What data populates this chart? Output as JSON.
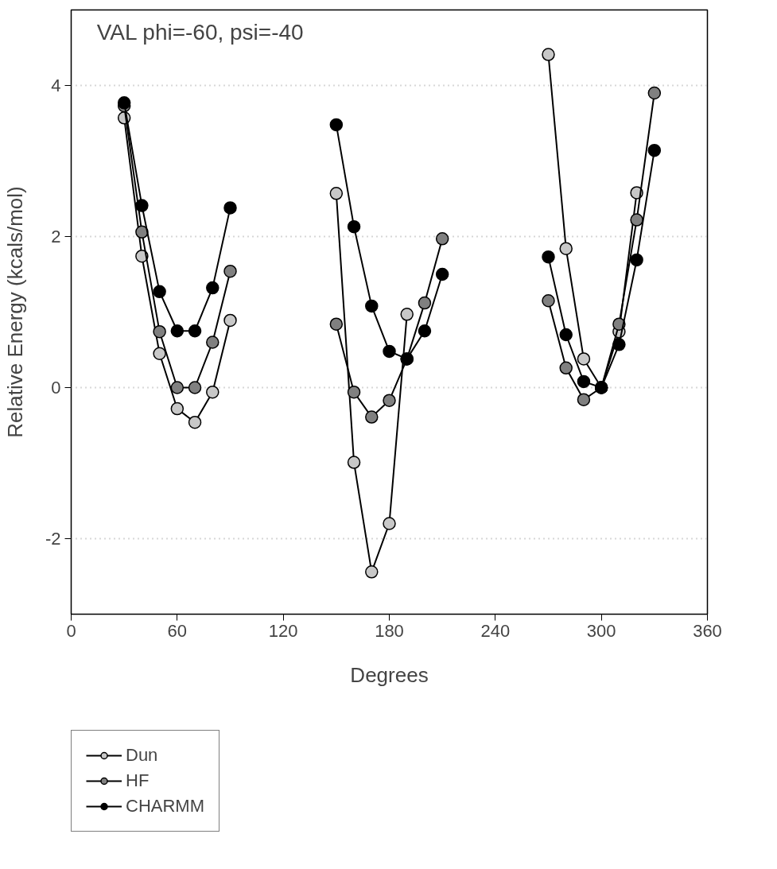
{
  "chart_data": {
    "type": "line",
    "title": "VAL phi=-60, psi=-40",
    "xlabel": "Degrees",
    "ylabel": "Relative Energy (kcals/mol)",
    "x": [
      30,
      40,
      50,
      60,
      70,
      80,
      90,
      120,
      150,
      160,
      170,
      180,
      190,
      200,
      210,
      240,
      270,
      280,
      290,
      300,
      310,
      320,
      330
    ],
    "series": [
      {
        "name": "Dun",
        "color": "#c8c8c8",
        "values": [
          3.57,
          1.74,
          0.45,
          -0.28,
          -0.46,
          -0.06,
          0.89,
          null,
          2.57,
          -0.99,
          -2.44,
          -1.8,
          0.97,
          null,
          null,
          null,
          4.41,
          1.84,
          0.38,
          0,
          0.74,
          2.58,
          null
        ]
      },
      {
        "name": "HF",
        "color": "#808080",
        "values": [
          3.73,
          2.06,
          0.74,
          0,
          0,
          0.6,
          1.54,
          null,
          0.84,
          -0.06,
          -0.39,
          -0.17,
          0.38,
          1.12,
          1.97,
          null,
          1.15,
          0.26,
          -0.16,
          0,
          0.84,
          2.22,
          3.9
        ]
      },
      {
        "name": "CHARMM",
        "color": "#000000",
        "values": [
          3.77,
          2.41,
          1.27,
          0.75,
          0.75,
          1.32,
          2.38,
          null,
          3.48,
          2.13,
          1.08,
          0.48,
          0.38,
          0.75,
          1.5,
          null,
          1.73,
          0.7,
          0.08,
          0,
          0.57,
          1.69,
          3.14
        ]
      }
    ],
    "xlim": [
      0,
      360
    ],
    "ylim": [
      -3,
      5
    ],
    "xticks": [
      0,
      60,
      120,
      180,
      240,
      300,
      360
    ],
    "yticks": [
      -2,
      0,
      2,
      4
    ],
    "grid": "y",
    "legend": "bottom left",
    "marker": "circle",
    "line_style": "solid"
  }
}
